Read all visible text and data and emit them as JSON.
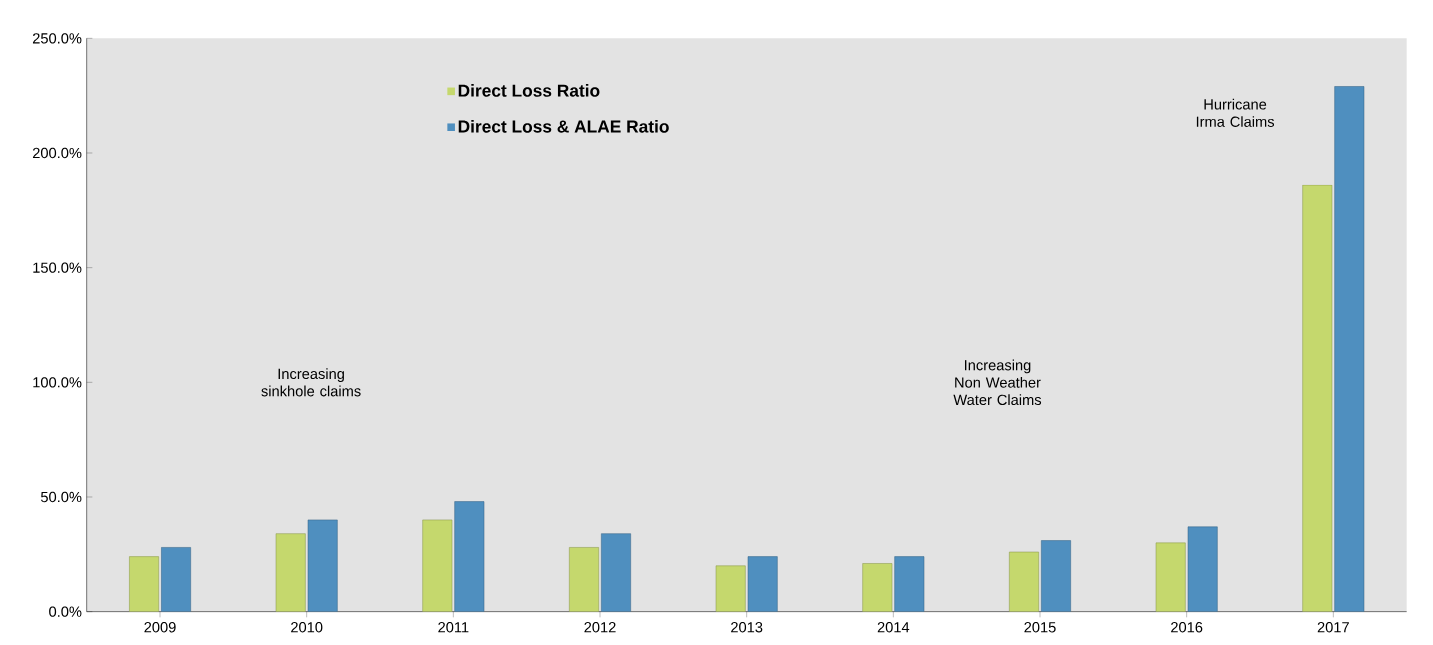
{
  "chart_data": {
    "type": "bar",
    "categories": [
      "2009",
      "2010",
      "2011",
      "2012",
      "2013",
      "2014",
      "2015",
      "2016",
      "2017"
    ],
    "series": [
      {
        "name": "Direct Loss Ratio",
        "color": "#c5d86d",
        "values": [
          24,
          34,
          40,
          28,
          20,
          21,
          26,
          30,
          186
        ]
      },
      {
        "name": "Direct Loss & ALAE Ratio",
        "color": "#4f8fbf",
        "values": [
          28,
          40,
          48,
          34,
          24,
          24,
          31,
          37,
          229
        ]
      }
    ],
    "ylim": [
      0,
      250
    ],
    "yticks": [
      {
        "value": 0,
        "label": "0.0%"
      },
      {
        "value": 50,
        "label": "50.0%"
      },
      {
        "value": 100,
        "label": "100.0%"
      },
      {
        "value": 150,
        "label": "150.0%"
      },
      {
        "value": 200,
        "label": "200.0%"
      },
      {
        "value": 250,
        "label": "250.0%"
      }
    ],
    "grid": false,
    "legend": "top left",
    "annotations": [
      "Increasing sinkhole claims",
      "Increasing Non Weather Water Claims",
      "Hurricane Irma Claims"
    ]
  }
}
